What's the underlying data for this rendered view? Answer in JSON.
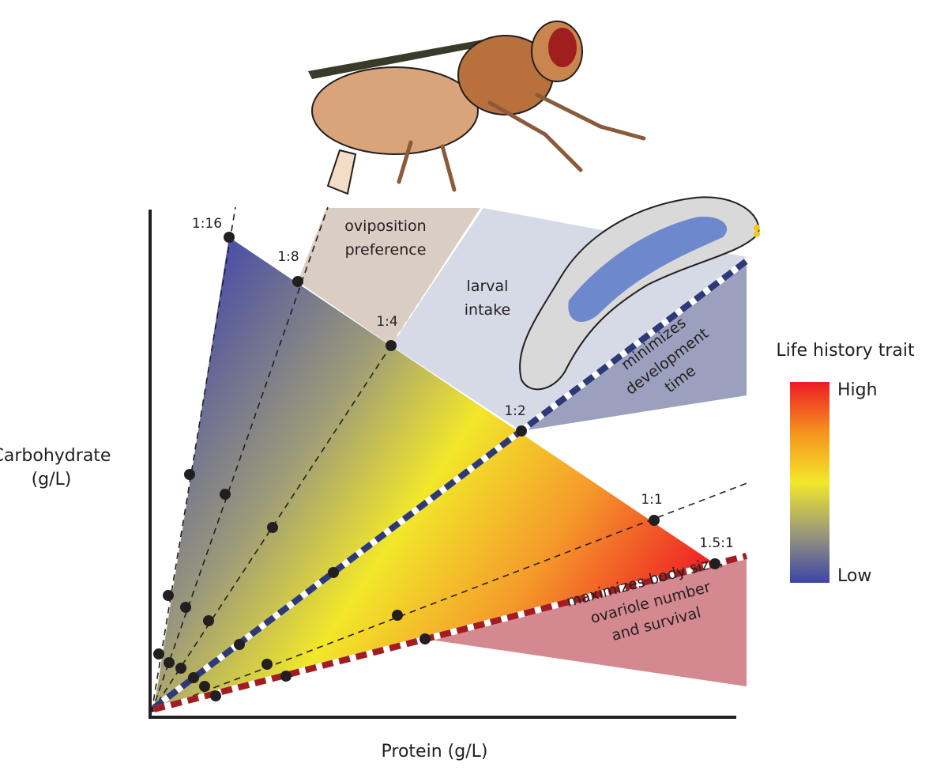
{
  "axes": {
    "y_label": [
      "Carbohydrate",
      "(g/L)"
    ],
    "x_label": "Protein (g/L)"
  },
  "ratio_lines": [
    {
      "label": "1:16"
    },
    {
      "label": "1:8"
    },
    {
      "label": "1:4"
    },
    {
      "label": "1:2"
    },
    {
      "label": "1:1"
    },
    {
      "label": "1.5:1"
    }
  ],
  "regions": [
    {
      "lines": [
        "oviposition",
        "preference"
      ]
    },
    {
      "lines": [
        "larval",
        "intake"
      ]
    },
    {
      "lines": [
        "minimizes",
        "development",
        "time"
      ]
    },
    {
      "lines": [
        "maximizes body size,",
        "ovariole number",
        "and survival"
      ]
    }
  ],
  "legend": {
    "title": "Life history trait",
    "high": "High",
    "low": "Low"
  }
}
